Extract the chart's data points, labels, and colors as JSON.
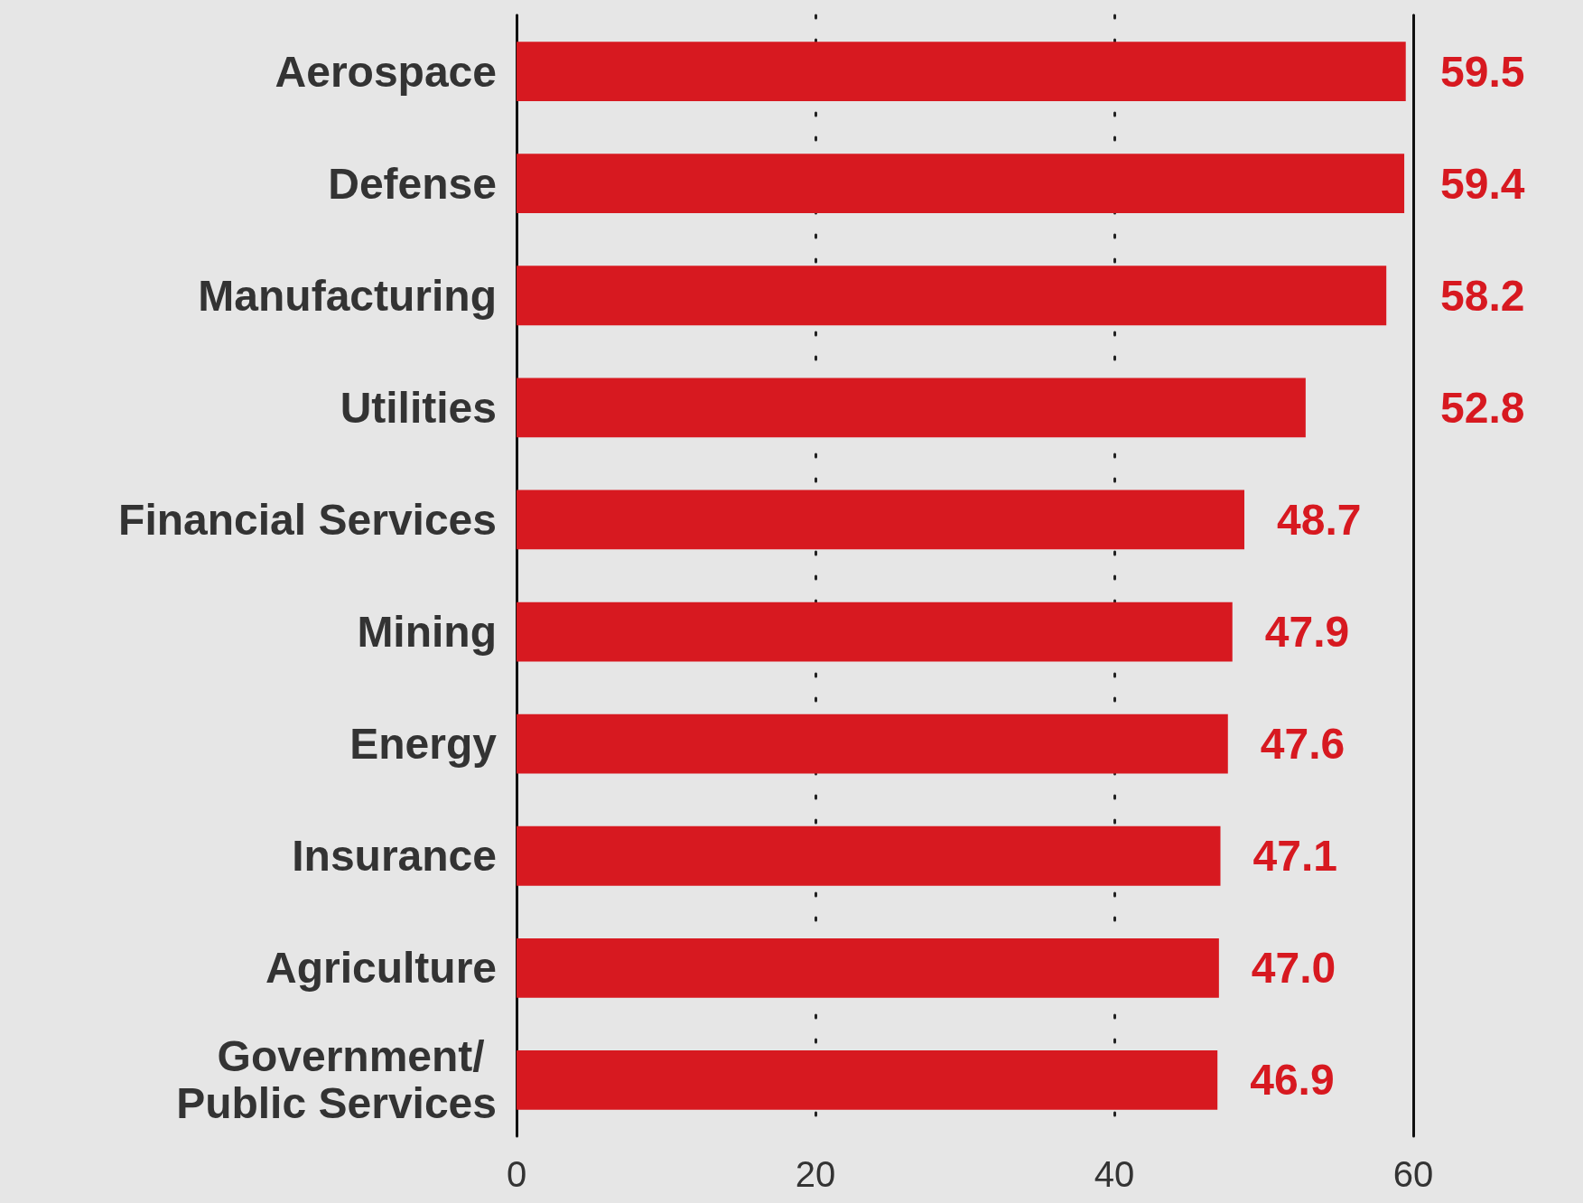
{
  "chart_data": {
    "type": "bar",
    "orientation": "horizontal",
    "categories": [
      "Aerospace",
      "Defense",
      "Manufacturing",
      "Utilities",
      "Financial Services",
      "Mining",
      "Energy",
      "Insurance",
      "Agriculture",
      "Government/ Public Services"
    ],
    "values": [
      59.5,
      59.4,
      58.2,
      52.8,
      48.7,
      47.9,
      47.6,
      47.1,
      47.0,
      46.9
    ],
    "value_labels": [
      "59.5",
      "59.4",
      "58.2",
      "52.8",
      "48.7",
      "47.9",
      "47.6",
      "47.1",
      "47.0",
      "46.9"
    ],
    "color": "#d71920",
    "xlim": [
      0,
      60
    ],
    "xticks": [
      0,
      20,
      40,
      60
    ],
    "grid": "x"
  }
}
